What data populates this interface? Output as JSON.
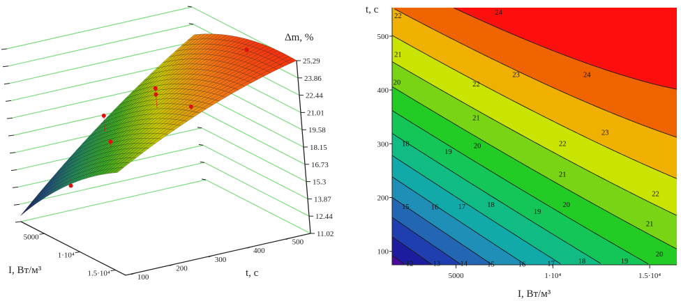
{
  "chart_data": [
    {
      "type": "surface3d",
      "zlabel": "Δm, %",
      "xlabel": "I, Вт/м³",
      "ylabel": "t, с",
      "x_ticks": [
        {
          "value": 5000,
          "label": "5000"
        },
        {
          "value": 10000,
          "label": "1·10⁴"
        },
        {
          "value": 15000,
          "label": "1.5·10⁴"
        }
      ],
      "y_ticks": [
        {
          "value": 100,
          "label": "100"
        },
        {
          "value": 200,
          "label": "200"
        },
        {
          "value": 300,
          "label": "300"
        },
        {
          "value": 400,
          "label": "400"
        },
        {
          "value": 500,
          "label": "500"
        }
      ],
      "z_ticks": [
        "25.29",
        "23.86",
        "22.44",
        "21.01",
        "19.58",
        "18.15",
        "16.73",
        "15.3",
        "13.87",
        "12.44",
        "11.02"
      ],
      "xlim": [
        1700,
        16400
      ],
      "ylim": [
        75,
        553
      ],
      "zlim": [
        11.02,
        25.29
      ],
      "grid": true,
      "grid_color": "#7ddc7d",
      "point_color": "#e01010",
      "points": [
        {
          "I": 8000,
          "t": 100,
          "dm": 15.7
        },
        {
          "I": 10000,
          "t": 175,
          "dm": 19.4
        },
        {
          "I": 5000,
          "t": 250,
          "dm": 19.5
        },
        {
          "I": 10000,
          "t": 300,
          "dm": 22.9
        },
        {
          "I": 10000,
          "t": 300,
          "dm": 22.4
        },
        {
          "I": 15000,
          "t": 300,
          "dm": 22.9
        },
        {
          "I": 12000,
          "t": 505,
          "dm": 25.2
        }
      ]
    },
    {
      "type": "contour",
      "xlabel": "I, Вт/м³",
      "ylabel": "t, с",
      "xlim": [
        1700,
        16400
      ],
      "ylim": [
        75,
        553
      ],
      "x_ticks": [
        {
          "value": 5000,
          "label": "5000"
        },
        {
          "value": 10000,
          "label": "1·10⁴"
        },
        {
          "value": 15000,
          "label": "1.5·10⁴"
        }
      ],
      "y_ticks": [
        {
          "value": 100,
          "label": "100"
        },
        {
          "value": 200,
          "label": "200"
        },
        {
          "value": 300,
          "label": "300"
        },
        {
          "value": 400,
          "label": "400"
        },
        {
          "value": 500,
          "label": "500"
        }
      ],
      "levels": [
        11,
        12,
        13,
        14,
        15,
        16,
        17,
        18,
        19,
        20,
        21,
        22,
        23,
        24,
        25
      ],
      "band_colors": [
        "#4a0c9a",
        "#1c1c9e",
        "#1f3fb0",
        "#2266b4",
        "#1f8fb8",
        "#12aaa8",
        "#10bb84",
        "#14c658",
        "#22cc24",
        "#78d414",
        "#c8e400",
        "#f0b000",
        "#f06400",
        "#ff0e0e"
      ],
      "labels": [
        {
          "text": "22",
          "I": 2000,
          "t": 539
        },
        {
          "text": "21",
          "I": 2000,
          "t": 467
        },
        {
          "text": "20",
          "I": 1950,
          "t": 415
        },
        {
          "text": "24",
          "I": 7200,
          "t": 545
        },
        {
          "text": "23",
          "I": 8100,
          "t": 429
        },
        {
          "text": "24",
          "I": 11760,
          "t": 429
        },
        {
          "text": "22",
          "I": 6040,
          "t": 412
        },
        {
          "text": "21",
          "I": 6040,
          "t": 349
        },
        {
          "text": "23",
          "I": 12700,
          "t": 322
        },
        {
          "text": "22",
          "I": 10500,
          "t": 301
        },
        {
          "text": "18",
          "I": 2400,
          "t": 301
        },
        {
          "text": "19",
          "I": 4600,
          "t": 286
        },
        {
          "text": "20",
          "I": 6100,
          "t": 297
        },
        {
          "text": "21",
          "I": 10500,
          "t": 244
        },
        {
          "text": "22",
          "I": 15300,
          "t": 208
        },
        {
          "text": "15",
          "I": 2400,
          "t": 184
        },
        {
          "text": "16",
          "I": 3900,
          "t": 183
        },
        {
          "text": "17",
          "I": 5300,
          "t": 184
        },
        {
          "text": "18",
          "I": 6800,
          "t": 188
        },
        {
          "text": "19",
          "I": 9200,
          "t": 175
        },
        {
          "text": "20",
          "I": 10700,
          "t": 188
        },
        {
          "text": "21",
          "I": 15000,
          "t": 152
        },
        {
          "text": "20",
          "I": 15500,
          "t": 96
        },
        {
          "text": "19",
          "I": 13700,
          "t": 83
        },
        {
          "text": "18",
          "I": 11500,
          "t": 83
        },
        {
          "text": "17",
          "I": 9900,
          "t": 78
        },
        {
          "text": "16",
          "I": 8400,
          "t": 77
        },
        {
          "text": "15",
          "I": 6800,
          "t": 77
        },
        {
          "text": "14",
          "I": 5400,
          "t": 78
        },
        {
          "text": "13",
          "I": 4000,
          "t": 78
        },
        {
          "text": "12",
          "I": 2600,
          "t": 78
        }
      ]
    }
  ]
}
